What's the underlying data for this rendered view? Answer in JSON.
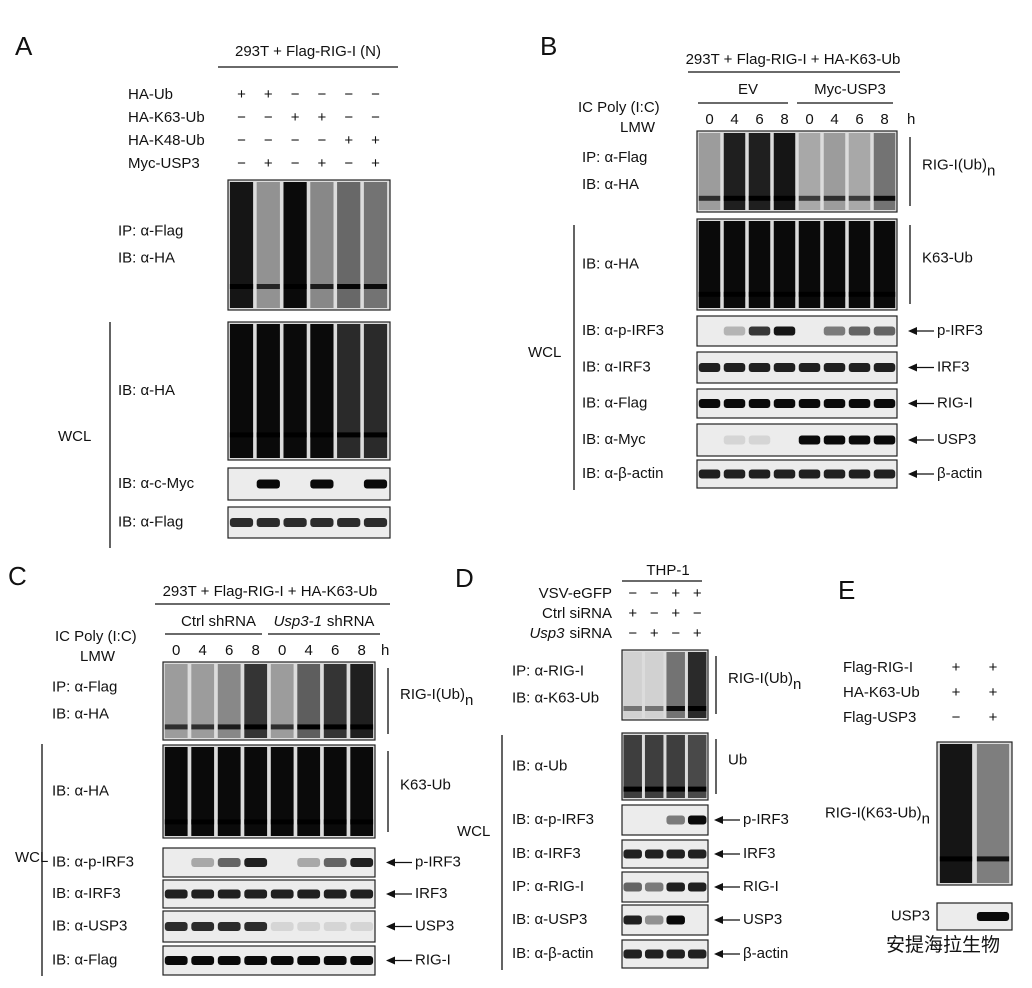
{
  "panels": [
    {
      "label": "A",
      "header": "293T + Flag-RIG-I (N)",
      "conditions": [
        {
          "name": "HA-Ub",
          "signs": [
            "+",
            "+",
            "−",
            "−",
            "−",
            "−"
          ]
        },
        {
          "name": "HA-K63-Ub",
          "signs": [
            "−",
            "−",
            "+",
            "+",
            "−",
            "−"
          ]
        },
        {
          "name": "HA-K48-Ub",
          "signs": [
            "−",
            "−",
            "−",
            "−",
            "+",
            "+"
          ]
        },
        {
          "name": "Myc-USP3",
          "signs": [
            "−",
            "+",
            "−",
            "+",
            "−",
            "+"
          ]
        }
      ],
      "blots": [
        {
          "labels": [
            "IP: α-Flag",
            "IB: α-HA"
          ]
        },
        {
          "labels": [
            "IB: α-HA"
          ]
        },
        {
          "labels": [
            "IB: α-c-Myc"
          ]
        },
        {
          "labels": [
            "IB: α-Flag"
          ]
        }
      ],
      "wcl": "WCL"
    },
    {
      "label": "B",
      "header": "293T + Flag-RIG-I + HA-K63-Ub",
      "groups": [
        {
          "text": "EV"
        },
        {
          "text": "Myc-USP3"
        }
      ],
      "treatment": [
        "IC Poly (I:C)",
        "LMW"
      ],
      "timepoints": [
        0,
        4,
        6,
        8,
        0,
        4,
        6,
        8
      ],
      "unit": "h",
      "blots": [
        {
          "labels": [
            "IP: α-Flag",
            "IB: α-HA"
          ],
          "target": "RIG-I(Ub)",
          "target_sub": "n"
        },
        {
          "labels": [
            "IB: α-HA"
          ],
          "target": "K63-Ub"
        },
        {
          "labels": [
            "IB: α-p-IRF3"
          ],
          "target": "p-IRF3"
        },
        {
          "labels": [
            "IB: α-IRF3"
          ],
          "target": "IRF3"
        },
        {
          "labels": [
            "IB: α-Flag"
          ],
          "target": "RIG-I"
        },
        {
          "labels": [
            "IB: α-Myc"
          ],
          "target": "USP3"
        },
        {
          "labels": [
            "IB: α-β-actin"
          ],
          "target": "β-actin"
        }
      ],
      "wcl": "WCL"
    },
    {
      "label": "C",
      "header": "293T + Flag-RIG-I + HA-K63-Ub",
      "groups": [
        {
          "text": "Ctrl shRNA"
        },
        {
          "italic": "Usp3-1",
          "text": "shRNA"
        }
      ],
      "treatment": [
        "IC Poly (I:C)",
        "LMW"
      ],
      "timepoints": [
        0,
        4,
        6,
        8,
        0,
        4,
        6,
        8
      ],
      "unit": "h",
      "blots": [
        {
          "labels": [
            "IP: α-Flag",
            "IB: α-HA"
          ],
          "target": "RIG-I(Ub)",
          "target_sub": "n"
        },
        {
          "labels": [
            "IB: α-HA"
          ],
          "target": "K63-Ub"
        },
        {
          "labels": [
            "IB: α-p-IRF3"
          ],
          "target": "p-IRF3"
        },
        {
          "labels": [
            "IB: α-IRF3"
          ],
          "target": "IRF3"
        },
        {
          "labels": [
            "IB: α-USP3"
          ],
          "target": "USP3"
        },
        {
          "labels": [
            "IB: α-Flag"
          ],
          "target": "RIG-I"
        }
      ],
      "wcl": "WCL"
    },
    {
      "label": "D",
      "header": "THP-1",
      "conditions": [
        {
          "name": "VSV-eGFP",
          "signs": [
            "−",
            "−",
            "+",
            "+"
          ]
        },
        {
          "name": "Ctrl siRNA",
          "signs": [
            "+",
            "−",
            "+",
            "−"
          ]
        },
        {
          "name": {
            "italic": "Usp3",
            "text": "siRNA"
          },
          "signs": [
            "−",
            "+",
            "−",
            "+"
          ]
        }
      ],
      "blots": [
        {
          "labels": [
            "IP: α-RIG-I",
            "IB: α-K63-Ub"
          ],
          "target": "RIG-I(Ub)",
          "target_sub": "n"
        },
        {
          "labels": [
            "IB: α-Ub"
          ],
          "target": "Ub"
        },
        {
          "labels": [
            "IB: α-p-IRF3"
          ],
          "target": "p-IRF3"
        },
        {
          "labels": [
            "IB: α-IRF3"
          ],
          "target": "IRF3"
        },
        {
          "labels": [
            "IP: α-RIG-I"
          ],
          "target": "RIG-I"
        },
        {
          "labels": [
            "IB: α-USP3"
          ],
          "target": "USP3"
        },
        {
          "labels": [
            "IB: α-β-actin"
          ],
          "target": "β-actin"
        }
      ],
      "wcl": "WCL"
    },
    {
      "label": "E",
      "conditions": [
        {
          "name": "Flag-RIG-I",
          "signs": [
            "+",
            "+"
          ]
        },
        {
          "name": "HA-K63-Ub",
          "signs": [
            "+",
            "+"
          ]
        },
        {
          "name": "Flag-USP3",
          "signs": [
            "−",
            "+"
          ]
        }
      ],
      "blots": [
        {
          "target": "RIG-I(K63-Ub)",
          "target_sub": "n"
        },
        {
          "target": "USP3"
        }
      ]
    }
  ],
  "watermark": "安提海拉生物"
}
